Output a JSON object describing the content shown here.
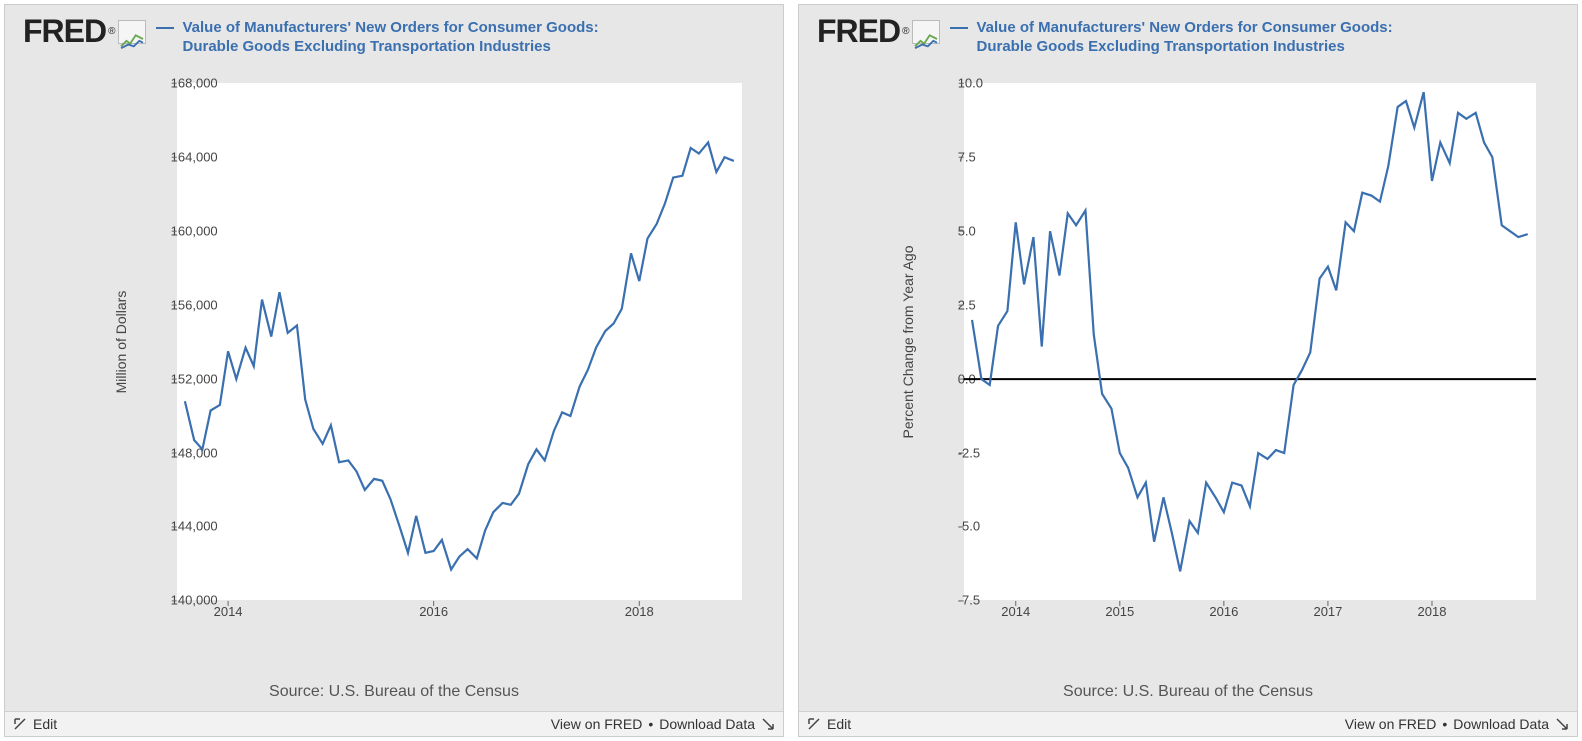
{
  "logo_text": "FRED",
  "charts": [
    {
      "id": "chart-left",
      "series_label": "Value of Manufacturers' New Orders for Consumer Goods: Durable Goods Excluding Transportation Industries",
      "series_color": "#3a6fb0",
      "ylabel": "Million of Dollars",
      "type": "line",
      "ylim": [
        140000,
        168000
      ],
      "yticks": [
        140000,
        144000,
        148000,
        152000,
        156000,
        160000,
        164000,
        168000
      ],
      "ytick_labels": [
        "140,000",
        "144,000",
        "148,000",
        "152,000",
        "156,000",
        "160,000",
        "164,000",
        "168,000"
      ],
      "xlim": [
        2013.5,
        2019.0
      ],
      "xticks": [
        2014,
        2016,
        2018
      ],
      "xtick_labels": [
        "2014",
        "2016",
        "2018"
      ],
      "zero_line": null,
      "plot_left_pct": 16,
      "plot_right_pct": 97,
      "plot_top_pct": 3,
      "plot_bottom_pct": 88,
      "background_color": "#ffffff",
      "panel_bg": "#e7e7e7",
      "line_width": 2.2,
      "data": [
        [
          2013.58,
          150800
        ],
        [
          2013.67,
          148700
        ],
        [
          2013.75,
          148200
        ],
        [
          2013.83,
          150300
        ],
        [
          2013.92,
          150600
        ],
        [
          2014.0,
          153500
        ],
        [
          2014.08,
          152000
        ],
        [
          2014.17,
          153700
        ],
        [
          2014.25,
          152700
        ],
        [
          2014.33,
          156300
        ],
        [
          2014.42,
          154300
        ],
        [
          2014.5,
          156700
        ],
        [
          2014.58,
          154500
        ],
        [
          2014.67,
          154900
        ],
        [
          2014.75,
          150900
        ],
        [
          2014.83,
          149300
        ],
        [
          2014.92,
          148500
        ],
        [
          2015.0,
          149500
        ],
        [
          2015.08,
          147500
        ],
        [
          2015.17,
          147600
        ],
        [
          2015.25,
          147000
        ],
        [
          2015.33,
          146000
        ],
        [
          2015.42,
          146600
        ],
        [
          2015.5,
          146500
        ],
        [
          2015.58,
          145500
        ],
        [
          2015.67,
          144000
        ],
        [
          2015.75,
          142600
        ],
        [
          2015.83,
          144600
        ],
        [
          2015.92,
          142600
        ],
        [
          2016.0,
          142700
        ],
        [
          2016.08,
          143300
        ],
        [
          2016.17,
          141700
        ],
        [
          2016.25,
          142400
        ],
        [
          2016.33,
          142800
        ],
        [
          2016.42,
          142300
        ],
        [
          2016.5,
          143800
        ],
        [
          2016.58,
          144800
        ],
        [
          2016.67,
          145300
        ],
        [
          2016.75,
          145200
        ],
        [
          2016.83,
          145800
        ],
        [
          2016.92,
          147400
        ],
        [
          2017.0,
          148200
        ],
        [
          2017.08,
          147600
        ],
        [
          2017.17,
          149200
        ],
        [
          2017.25,
          150200
        ],
        [
          2017.33,
          150000
        ],
        [
          2017.42,
          151600
        ],
        [
          2017.5,
          152500
        ],
        [
          2017.58,
          153700
        ],
        [
          2017.67,
          154600
        ],
        [
          2017.75,
          155000
        ],
        [
          2017.83,
          155800
        ],
        [
          2017.92,
          158800
        ],
        [
          2018.0,
          157300
        ],
        [
          2018.08,
          159600
        ],
        [
          2018.17,
          160400
        ],
        [
          2018.25,
          161500
        ],
        [
          2018.33,
          162900
        ],
        [
          2018.42,
          163000
        ],
        [
          2018.5,
          164500
        ],
        [
          2018.58,
          164200
        ],
        [
          2018.67,
          164800
        ],
        [
          2018.75,
          163200
        ],
        [
          2018.83,
          164000
        ],
        [
          2018.92,
          163800
        ]
      ],
      "source_text": "Source: U.S. Bureau of the Census",
      "footer": {
        "edit": "Edit",
        "view": "View on FRED",
        "download": "Download Data",
        "sep": "•"
      }
    },
    {
      "id": "chart-right",
      "series_label": "Value of Manufacturers' New Orders for Consumer Goods: Durable Goods Excluding Transportation Industries",
      "series_color": "#3a6fb0",
      "ylabel": "Percent Change from Year Ago",
      "type": "line",
      "ylim": [
        -7.5,
        10.0
      ],
      "yticks": [
        -7.5,
        -5.0,
        -2.5,
        0.0,
        2.5,
        5.0,
        7.5,
        10.0
      ],
      "ytick_labels": [
        "-7.5",
        "-5.0",
        "-2.5",
        "0.0",
        "2.5",
        "5.0",
        "7.5",
        "10.0"
      ],
      "xlim": [
        2013.5,
        2019.0
      ],
      "xticks": [
        2014,
        2015,
        2016,
        2017,
        2018
      ],
      "xtick_labels": [
        "2014",
        "2015",
        "2016",
        "2017",
        "2018"
      ],
      "zero_line": 0.0,
      "plot_left_pct": 15,
      "plot_right_pct": 97,
      "plot_top_pct": 3,
      "plot_bottom_pct": 88,
      "background_color": "#ffffff",
      "panel_bg": "#e7e7e7",
      "line_width": 2.2,
      "data": [
        [
          2013.58,
          2.0
        ],
        [
          2013.67,
          0.0
        ],
        [
          2013.75,
          -0.2
        ],
        [
          2013.83,
          1.8
        ],
        [
          2013.92,
          2.3
        ],
        [
          2014.0,
          5.3
        ],
        [
          2014.08,
          3.2
        ],
        [
          2014.17,
          4.8
        ],
        [
          2014.25,
          1.1
        ],
        [
          2014.33,
          5.0
        ],
        [
          2014.42,
          3.5
        ],
        [
          2014.5,
          5.6
        ],
        [
          2014.58,
          5.2
        ],
        [
          2014.67,
          5.7
        ],
        [
          2014.75,
          1.5
        ],
        [
          2014.83,
          -0.5
        ],
        [
          2014.92,
          -1.0
        ],
        [
          2015.0,
          -2.5
        ],
        [
          2015.08,
          -3.0
        ],
        [
          2015.17,
          -4.0
        ],
        [
          2015.25,
          -3.5
        ],
        [
          2015.33,
          -5.5
        ],
        [
          2015.42,
          -4.0
        ],
        [
          2015.5,
          -5.2
        ],
        [
          2015.58,
          -6.5
        ],
        [
          2015.67,
          -4.8
        ],
        [
          2015.75,
          -5.2
        ],
        [
          2015.83,
          -3.5
        ],
        [
          2015.92,
          -4.0
        ],
        [
          2016.0,
          -4.5
        ],
        [
          2016.08,
          -3.5
        ],
        [
          2016.17,
          -3.6
        ],
        [
          2016.25,
          -4.3
        ],
        [
          2016.33,
          -2.5
        ],
        [
          2016.42,
          -2.7
        ],
        [
          2016.5,
          -2.4
        ],
        [
          2016.58,
          -2.5
        ],
        [
          2016.67,
          -0.2
        ],
        [
          2016.75,
          0.3
        ],
        [
          2016.83,
          0.9
        ],
        [
          2016.92,
          3.4
        ],
        [
          2017.0,
          3.8
        ],
        [
          2017.08,
          3.0
        ],
        [
          2017.17,
          5.3
        ],
        [
          2017.25,
          5.0
        ],
        [
          2017.33,
          6.3
        ],
        [
          2017.42,
          6.2
        ],
        [
          2017.5,
          6.0
        ],
        [
          2017.58,
          7.2
        ],
        [
          2017.67,
          9.2
        ],
        [
          2017.75,
          9.4
        ],
        [
          2017.83,
          8.5
        ],
        [
          2017.92,
          9.7
        ],
        [
          2018.0,
          6.7
        ],
        [
          2018.08,
          8.0
        ],
        [
          2018.17,
          7.3
        ],
        [
          2018.25,
          9.0
        ],
        [
          2018.33,
          8.8
        ],
        [
          2018.42,
          9.0
        ],
        [
          2018.5,
          8.0
        ],
        [
          2018.58,
          7.5
        ],
        [
          2018.67,
          5.2
        ],
        [
          2018.75,
          5.0
        ],
        [
          2018.83,
          4.8
        ],
        [
          2018.92,
          4.9
        ]
      ],
      "source_text": "Source: U.S. Bureau of the Census",
      "footer": {
        "edit": "Edit",
        "view": "View on FRED",
        "download": "Download Data",
        "sep": "•"
      }
    }
  ]
}
